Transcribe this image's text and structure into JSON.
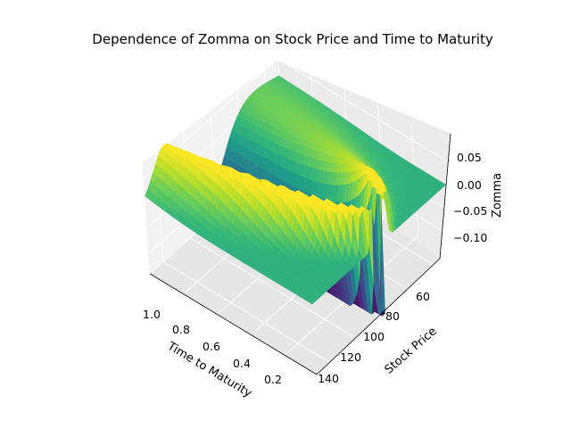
{
  "chart_data": {
    "type": "surface3d",
    "title": "Dependence of Zomma on Stock Price and Time to Maturity",
    "xlabel": "Time to Maturity",
    "ylabel": "Stock Price",
    "zlabel": "Zomma",
    "x_ticks": [
      "1.0",
      "0.8",
      "0.6",
      "0.4",
      "0.2"
    ],
    "y_ticks": [
      "60",
      "80",
      "100",
      "120",
      "140"
    ],
    "z_ticks": [
      "0.05",
      "0.00",
      "−0.05",
      "−0.10"
    ],
    "xlim": [
      0.01,
      1.0
    ],
    "ylim": [
      50,
      150
    ],
    "zlim": [
      -0.14,
      0.08
    ],
    "colormap": "viridis",
    "grid": true
  }
}
